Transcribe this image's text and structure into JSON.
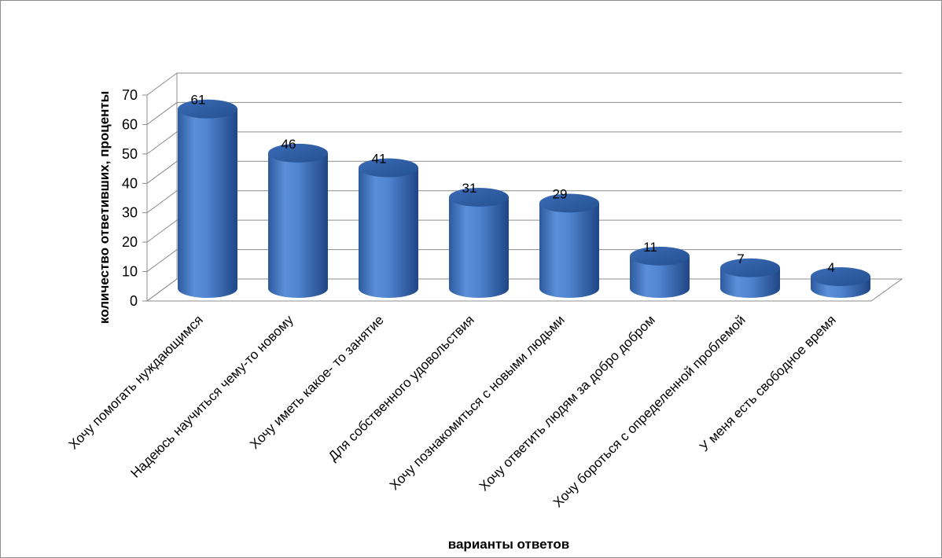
{
  "chart_data": {
    "type": "bar",
    "title": "",
    "xlabel": "варианты ответов",
    "ylabel": "количество ответивших, проценты",
    "ylim": [
      0,
      70
    ],
    "yticks": [
      0,
      10,
      20,
      30,
      40,
      50,
      60,
      70
    ],
    "grid": true,
    "style": "3d-cylinder",
    "bar_color": "#4a7ec8",
    "categories": [
      "Хочу помогать нуждающимся",
      "Надеюсь научиться чему-то новому",
      "Хочу иметь какое- то занятие",
      "Для собственного удовольствия",
      "Хочу познакомиться с новыми  людьми",
      "Хочу ответить людям за добро добром",
      "Хочу бороться с определенной проблемой",
      "У меня есть свободное время"
    ],
    "values": [
      61,
      46,
      41,
      31,
      29,
      11,
      7,
      4
    ]
  }
}
